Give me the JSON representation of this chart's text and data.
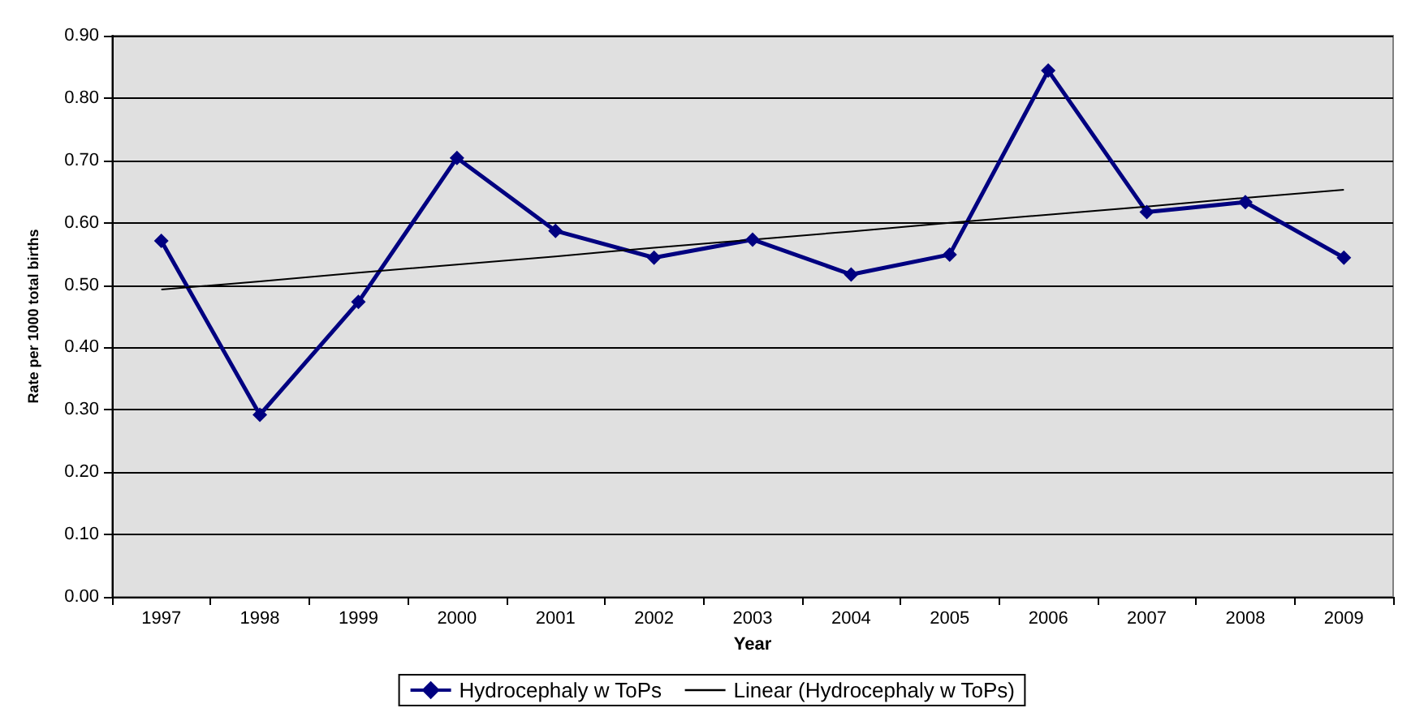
{
  "chart_data": {
    "type": "line",
    "xlabel": "Year",
    "ylabel": "Rate per 1000 total births",
    "categories": [
      "1997",
      "1998",
      "1999",
      "2000",
      "2001",
      "2002",
      "2003",
      "2004",
      "2005",
      "2006",
      "2007",
      "2008",
      "2009"
    ],
    "series": [
      {
        "name": "Hydrocephaly w ToPs",
        "color": "#000080",
        "marker": "diamond",
        "values": [
          0.571,
          0.292,
          0.473,
          0.704,
          0.587,
          0.544,
          0.573,
          0.517,
          0.549,
          0.844,
          0.617,
          0.633,
          0.544
        ]
      },
      {
        "name": "Linear (Hydrocephaly w ToPs)",
        "color": "#000000",
        "marker": "none",
        "values": [
          0.493,
          0.506,
          0.52,
          0.533,
          0.546,
          0.56,
          0.573,
          0.586,
          0.6,
          0.613,
          0.626,
          0.64,
          0.653
        ]
      }
    ],
    "ylim": [
      0,
      0.9
    ],
    "yticks": [
      {
        "value": 0,
        "label": "0.00"
      },
      {
        "value": 0.1,
        "label": "0.10"
      },
      {
        "value": 0.2,
        "label": "0.20"
      },
      {
        "value": 0.3,
        "label": "0.30"
      },
      {
        "value": 0.4,
        "label": "0.40"
      },
      {
        "value": 0.5,
        "label": "0.50"
      },
      {
        "value": 0.6,
        "label": "0.60"
      },
      {
        "value": 0.7,
        "label": "0.70"
      },
      {
        "value": 0.8,
        "label": "0.80"
      },
      {
        "value": 0.9,
        "label": "0.90"
      }
    ],
    "grid": "y",
    "legend": "bottom"
  }
}
